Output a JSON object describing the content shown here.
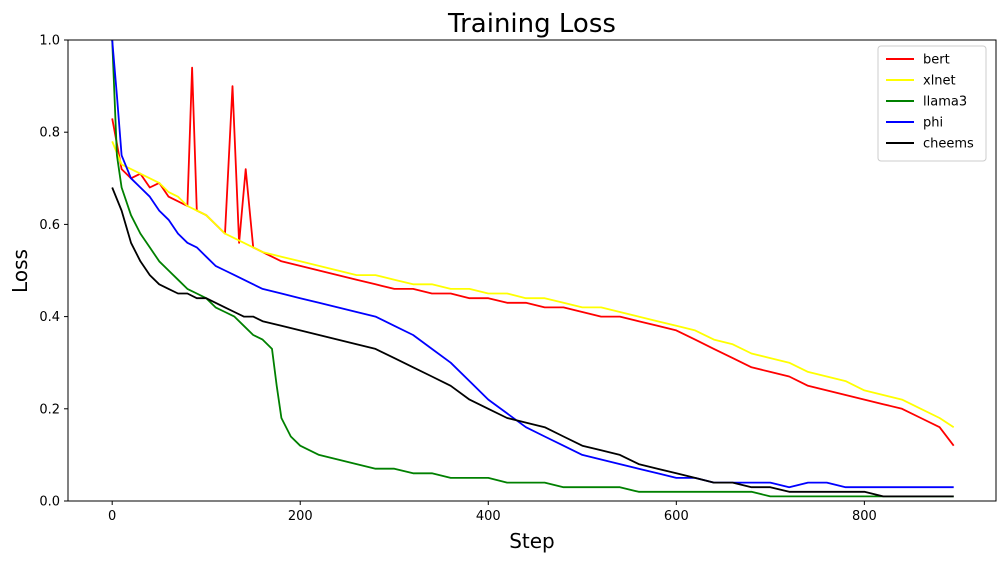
{
  "chart_data": {
    "type": "line",
    "title": "Training Loss",
    "xlabel": "Step",
    "ylabel": "Loss",
    "xlim": [
      -47,
      940
    ],
    "ylim": [
      0,
      1.0
    ],
    "xticks": [
      0,
      200,
      400,
      600,
      800
    ],
    "yticks": [
      0.0,
      0.2,
      0.4,
      0.6,
      0.8,
      1.0
    ],
    "legend_position": "top-right",
    "grid": false,
    "series": [
      {
        "name": "bert",
        "color": "#ff0000",
        "points": [
          [
            0,
            0.83
          ],
          [
            10,
            0.72
          ],
          [
            20,
            0.7
          ],
          [
            30,
            0.71
          ],
          [
            40,
            0.68
          ],
          [
            50,
            0.69
          ],
          [
            60,
            0.66
          ],
          [
            70,
            0.65
          ],
          [
            80,
            0.64
          ],
          [
            85,
            0.94
          ],
          [
            90,
            0.63
          ],
          [
            100,
            0.62
          ],
          [
            110,
            0.6
          ],
          [
            120,
            0.58
          ],
          [
            128,
            0.9
          ],
          [
            135,
            0.56
          ],
          [
            142,
            0.72
          ],
          [
            150,
            0.55
          ],
          [
            160,
            0.54
          ],
          [
            170,
            0.53
          ],
          [
            180,
            0.52
          ],
          [
            200,
            0.51
          ],
          [
            220,
            0.5
          ],
          [
            240,
            0.49
          ],
          [
            260,
            0.48
          ],
          [
            280,
            0.47
          ],
          [
            300,
            0.46
          ],
          [
            320,
            0.46
          ],
          [
            340,
            0.45
          ],
          [
            360,
            0.45
          ],
          [
            380,
            0.44
          ],
          [
            400,
            0.44
          ],
          [
            420,
            0.43
          ],
          [
            440,
            0.43
          ],
          [
            460,
            0.42
          ],
          [
            480,
            0.42
          ],
          [
            500,
            0.41
          ],
          [
            520,
            0.4
          ],
          [
            540,
            0.4
          ],
          [
            560,
            0.39
          ],
          [
            580,
            0.38
          ],
          [
            600,
            0.37
          ],
          [
            620,
            0.35
          ],
          [
            640,
            0.33
          ],
          [
            660,
            0.31
          ],
          [
            680,
            0.29
          ],
          [
            700,
            0.28
          ],
          [
            720,
            0.27
          ],
          [
            740,
            0.25
          ],
          [
            760,
            0.24
          ],
          [
            780,
            0.23
          ],
          [
            800,
            0.22
          ],
          [
            820,
            0.21
          ],
          [
            840,
            0.2
          ],
          [
            860,
            0.18
          ],
          [
            880,
            0.16
          ],
          [
            895,
            0.12
          ]
        ]
      },
      {
        "name": "xlnet",
        "color": "#ffff00",
        "points": [
          [
            0,
            0.78
          ],
          [
            10,
            0.73
          ],
          [
            20,
            0.72
          ],
          [
            30,
            0.71
          ],
          [
            40,
            0.7
          ],
          [
            50,
            0.69
          ],
          [
            60,
            0.67
          ],
          [
            70,
            0.66
          ],
          [
            80,
            0.64
          ],
          [
            90,
            0.63
          ],
          [
            100,
            0.62
          ],
          [
            110,
            0.6
          ],
          [
            120,
            0.58
          ],
          [
            130,
            0.57
          ],
          [
            140,
            0.56
          ],
          [
            150,
            0.55
          ],
          [
            160,
            0.54
          ],
          [
            180,
            0.53
          ],
          [
            200,
            0.52
          ],
          [
            220,
            0.51
          ],
          [
            240,
            0.5
          ],
          [
            260,
            0.49
          ],
          [
            280,
            0.49
          ],
          [
            300,
            0.48
          ],
          [
            320,
            0.47
          ],
          [
            340,
            0.47
          ],
          [
            360,
            0.46
          ],
          [
            380,
            0.46
          ],
          [
            400,
            0.45
          ],
          [
            420,
            0.45
          ],
          [
            440,
            0.44
          ],
          [
            460,
            0.44
          ],
          [
            480,
            0.43
          ],
          [
            500,
            0.42
          ],
          [
            520,
            0.42
          ],
          [
            540,
            0.41
          ],
          [
            560,
            0.4
          ],
          [
            580,
            0.39
          ],
          [
            600,
            0.38
          ],
          [
            620,
            0.37
          ],
          [
            640,
            0.35
          ],
          [
            660,
            0.34
          ],
          [
            680,
            0.32
          ],
          [
            700,
            0.31
          ],
          [
            720,
            0.3
          ],
          [
            740,
            0.28
          ],
          [
            760,
            0.27
          ],
          [
            780,
            0.26
          ],
          [
            800,
            0.24
          ],
          [
            820,
            0.23
          ],
          [
            840,
            0.22
          ],
          [
            860,
            0.2
          ],
          [
            880,
            0.18
          ],
          [
            895,
            0.16
          ]
        ]
      },
      {
        "name": "llama3",
        "color": "#008000",
        "points": [
          [
            0,
            1.0
          ],
          [
            5,
            0.75
          ],
          [
            10,
            0.68
          ],
          [
            20,
            0.62
          ],
          [
            30,
            0.58
          ],
          [
            40,
            0.55
          ],
          [
            50,
            0.52
          ],
          [
            60,
            0.5
          ],
          [
            70,
            0.48
          ],
          [
            80,
            0.46
          ],
          [
            90,
            0.45
          ],
          [
            100,
            0.44
          ],
          [
            110,
            0.42
          ],
          [
            120,
            0.41
          ],
          [
            130,
            0.4
          ],
          [
            140,
            0.38
          ],
          [
            150,
            0.36
          ],
          [
            160,
            0.35
          ],
          [
            170,
            0.33
          ],
          [
            175,
            0.25
          ],
          [
            180,
            0.18
          ],
          [
            190,
            0.14
          ],
          [
            200,
            0.12
          ],
          [
            220,
            0.1
          ],
          [
            240,
            0.09
          ],
          [
            260,
            0.08
          ],
          [
            280,
            0.07
          ],
          [
            300,
            0.07
          ],
          [
            320,
            0.06
          ],
          [
            340,
            0.06
          ],
          [
            360,
            0.05
          ],
          [
            380,
            0.05
          ],
          [
            400,
            0.05
          ],
          [
            420,
            0.04
          ],
          [
            440,
            0.04
          ],
          [
            460,
            0.04
          ],
          [
            480,
            0.03
          ],
          [
            500,
            0.03
          ],
          [
            520,
            0.03
          ],
          [
            540,
            0.03
          ],
          [
            560,
            0.02
          ],
          [
            580,
            0.02
          ],
          [
            600,
            0.02
          ],
          [
            620,
            0.02
          ],
          [
            640,
            0.02
          ],
          [
            660,
            0.02
          ],
          [
            680,
            0.02
          ],
          [
            700,
            0.01
          ],
          [
            720,
            0.01
          ],
          [
            740,
            0.01
          ],
          [
            760,
            0.01
          ],
          [
            780,
            0.01
          ],
          [
            800,
            0.01
          ],
          [
            820,
            0.01
          ],
          [
            840,
            0.01
          ],
          [
            860,
            0.01
          ],
          [
            880,
            0.01
          ],
          [
            895,
            0.01
          ]
        ]
      },
      {
        "name": "phi",
        "color": "#0000ff",
        "points": [
          [
            0,
            1.0
          ],
          [
            5,
            0.88
          ],
          [
            10,
            0.75
          ],
          [
            20,
            0.7
          ],
          [
            30,
            0.68
          ],
          [
            40,
            0.66
          ],
          [
            50,
            0.63
          ],
          [
            60,
            0.61
          ],
          [
            70,
            0.58
          ],
          [
            80,
            0.56
          ],
          [
            90,
            0.55
          ],
          [
            100,
            0.53
          ],
          [
            110,
            0.51
          ],
          [
            120,
            0.5
          ],
          [
            130,
            0.49
          ],
          [
            140,
            0.48
          ],
          [
            150,
            0.47
          ],
          [
            160,
            0.46
          ],
          [
            180,
            0.45
          ],
          [
            200,
            0.44
          ],
          [
            220,
            0.43
          ],
          [
            240,
            0.42
          ],
          [
            260,
            0.41
          ],
          [
            280,
            0.4
          ],
          [
            300,
            0.38
          ],
          [
            320,
            0.36
          ],
          [
            340,
            0.33
          ],
          [
            360,
            0.3
          ],
          [
            380,
            0.26
          ],
          [
            400,
            0.22
          ],
          [
            420,
            0.19
          ],
          [
            440,
            0.16
          ],
          [
            460,
            0.14
          ],
          [
            480,
            0.12
          ],
          [
            500,
            0.1
          ],
          [
            520,
            0.09
          ],
          [
            540,
            0.08
          ],
          [
            560,
            0.07
          ],
          [
            580,
            0.06
          ],
          [
            600,
            0.05
          ],
          [
            620,
            0.05
          ],
          [
            640,
            0.04
          ],
          [
            660,
            0.04
          ],
          [
            680,
            0.04
          ],
          [
            700,
            0.04
          ],
          [
            720,
            0.03
          ],
          [
            740,
            0.04
          ],
          [
            760,
            0.04
          ],
          [
            780,
            0.03
          ],
          [
            800,
            0.03
          ],
          [
            820,
            0.03
          ],
          [
            840,
            0.03
          ],
          [
            860,
            0.03
          ],
          [
            880,
            0.03
          ],
          [
            895,
            0.03
          ]
        ]
      },
      {
        "name": "cheems",
        "color": "#000000",
        "points": [
          [
            0,
            0.68
          ],
          [
            10,
            0.63
          ],
          [
            20,
            0.56
          ],
          [
            30,
            0.52
          ],
          [
            40,
            0.49
          ],
          [
            50,
            0.47
          ],
          [
            60,
            0.46
          ],
          [
            70,
            0.45
          ],
          [
            80,
            0.45
          ],
          [
            90,
            0.44
          ],
          [
            100,
            0.44
          ],
          [
            110,
            0.43
          ],
          [
            120,
            0.42
          ],
          [
            130,
            0.41
          ],
          [
            140,
            0.4
          ],
          [
            150,
            0.4
          ],
          [
            160,
            0.39
          ],
          [
            180,
            0.38
          ],
          [
            200,
            0.37
          ],
          [
            220,
            0.36
          ],
          [
            240,
            0.35
          ],
          [
            260,
            0.34
          ],
          [
            280,
            0.33
          ],
          [
            300,
            0.31
          ],
          [
            320,
            0.29
          ],
          [
            340,
            0.27
          ],
          [
            360,
            0.25
          ],
          [
            380,
            0.22
          ],
          [
            400,
            0.2
          ],
          [
            420,
            0.18
          ],
          [
            440,
            0.17
          ],
          [
            460,
            0.16
          ],
          [
            480,
            0.14
          ],
          [
            500,
            0.12
          ],
          [
            520,
            0.11
          ],
          [
            540,
            0.1
          ],
          [
            560,
            0.08
          ],
          [
            580,
            0.07
          ],
          [
            600,
            0.06
          ],
          [
            620,
            0.05
          ],
          [
            640,
            0.04
          ],
          [
            660,
            0.04
          ],
          [
            680,
            0.03
          ],
          [
            700,
            0.03
          ],
          [
            720,
            0.02
          ],
          [
            740,
            0.02
          ],
          [
            760,
            0.02
          ],
          [
            780,
            0.02
          ],
          [
            800,
            0.02
          ],
          [
            820,
            0.01
          ],
          [
            840,
            0.01
          ],
          [
            860,
            0.01
          ],
          [
            880,
            0.01
          ],
          [
            895,
            0.01
          ]
        ]
      }
    ]
  }
}
